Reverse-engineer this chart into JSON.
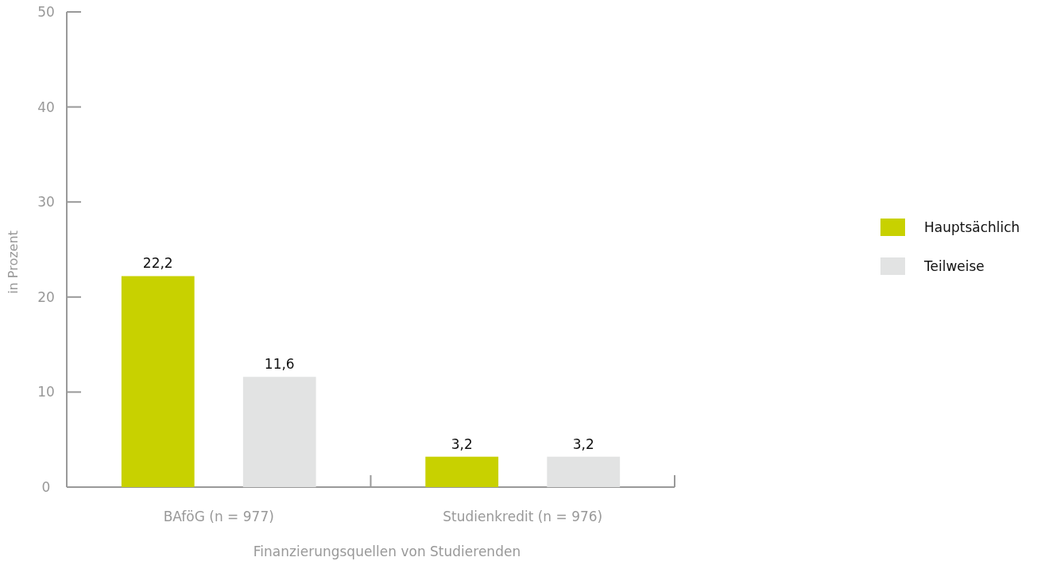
{
  "chart_data": {
    "type": "bar",
    "xlabel": "Finanzierungsquellen von Studierenden",
    "ylabel": "in Prozent",
    "categories": [
      "BAföG (n = 977)",
      "Studienkredit (n = 976)"
    ],
    "series": [
      {
        "name": "Hauptsächlich",
        "color": "#c8d100",
        "values": [
          22.2,
          3.2
        ],
        "value_labels": [
          "22,2",
          "3,2"
        ]
      },
      {
        "name": "Teilweise",
        "color": "#e2e3e3",
        "values": [
          11.6,
          3.2
        ],
        "value_labels": [
          "11,6",
          "3,2"
        ]
      }
    ],
    "ylim": [
      0,
      50
    ],
    "yticks": [
      0,
      10,
      20,
      30,
      40,
      50
    ],
    "grid": false,
    "legend": "right"
  }
}
